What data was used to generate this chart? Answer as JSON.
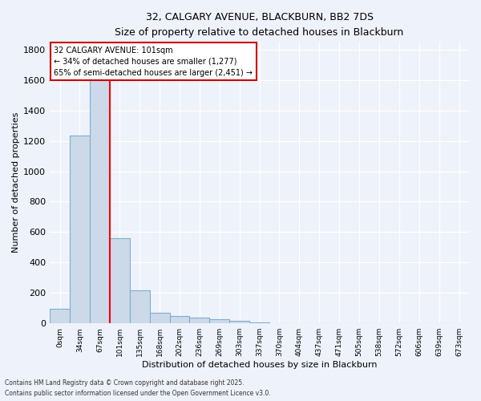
{
  "title_line1": "32, CALGARY AVENUE, BLACKBURN, BB2 7DS",
  "title_line2": "Size of property relative to detached houses in Blackburn",
  "xlabel": "Distribution of detached houses by size in Blackburn",
  "ylabel": "Number of detached properties",
  "bar_color": "#ccd9e8",
  "bar_edge_color": "#7bafd4",
  "background_color": "#eef2fb",
  "grid_color": "#ffffff",
  "categories": [
    "0sqm",
    "34sqm",
    "67sqm",
    "101sqm",
    "135sqm",
    "168sqm",
    "202sqm",
    "236sqm",
    "269sqm",
    "303sqm",
    "337sqm",
    "370sqm",
    "404sqm",
    "437sqm",
    "471sqm",
    "505sqm",
    "538sqm",
    "572sqm",
    "606sqm",
    "639sqm",
    "673sqm"
  ],
  "values": [
    95,
    1235,
    1620,
    560,
    215,
    70,
    48,
    38,
    28,
    15,
    5,
    0,
    0,
    0,
    0,
    0,
    0,
    0,
    0,
    0,
    0
  ],
  "ylim": [
    0,
    1850
  ],
  "yticks": [
    0,
    200,
    400,
    600,
    800,
    1000,
    1200,
    1400,
    1600,
    1800
  ],
  "red_line_x": 2.5,
  "annotation_text": "32 CALGARY AVENUE: 101sqm\n← 34% of detached houses are smaller (1,277)\n65% of semi-detached houses are larger (2,451) →",
  "annotation_box_color": "#ffffff",
  "annotation_box_edge": "#cc0000",
  "footnote1": "Contains HM Land Registry data © Crown copyright and database right 2025.",
  "footnote2": "Contains public sector information licensed under the Open Government Licence v3.0."
}
